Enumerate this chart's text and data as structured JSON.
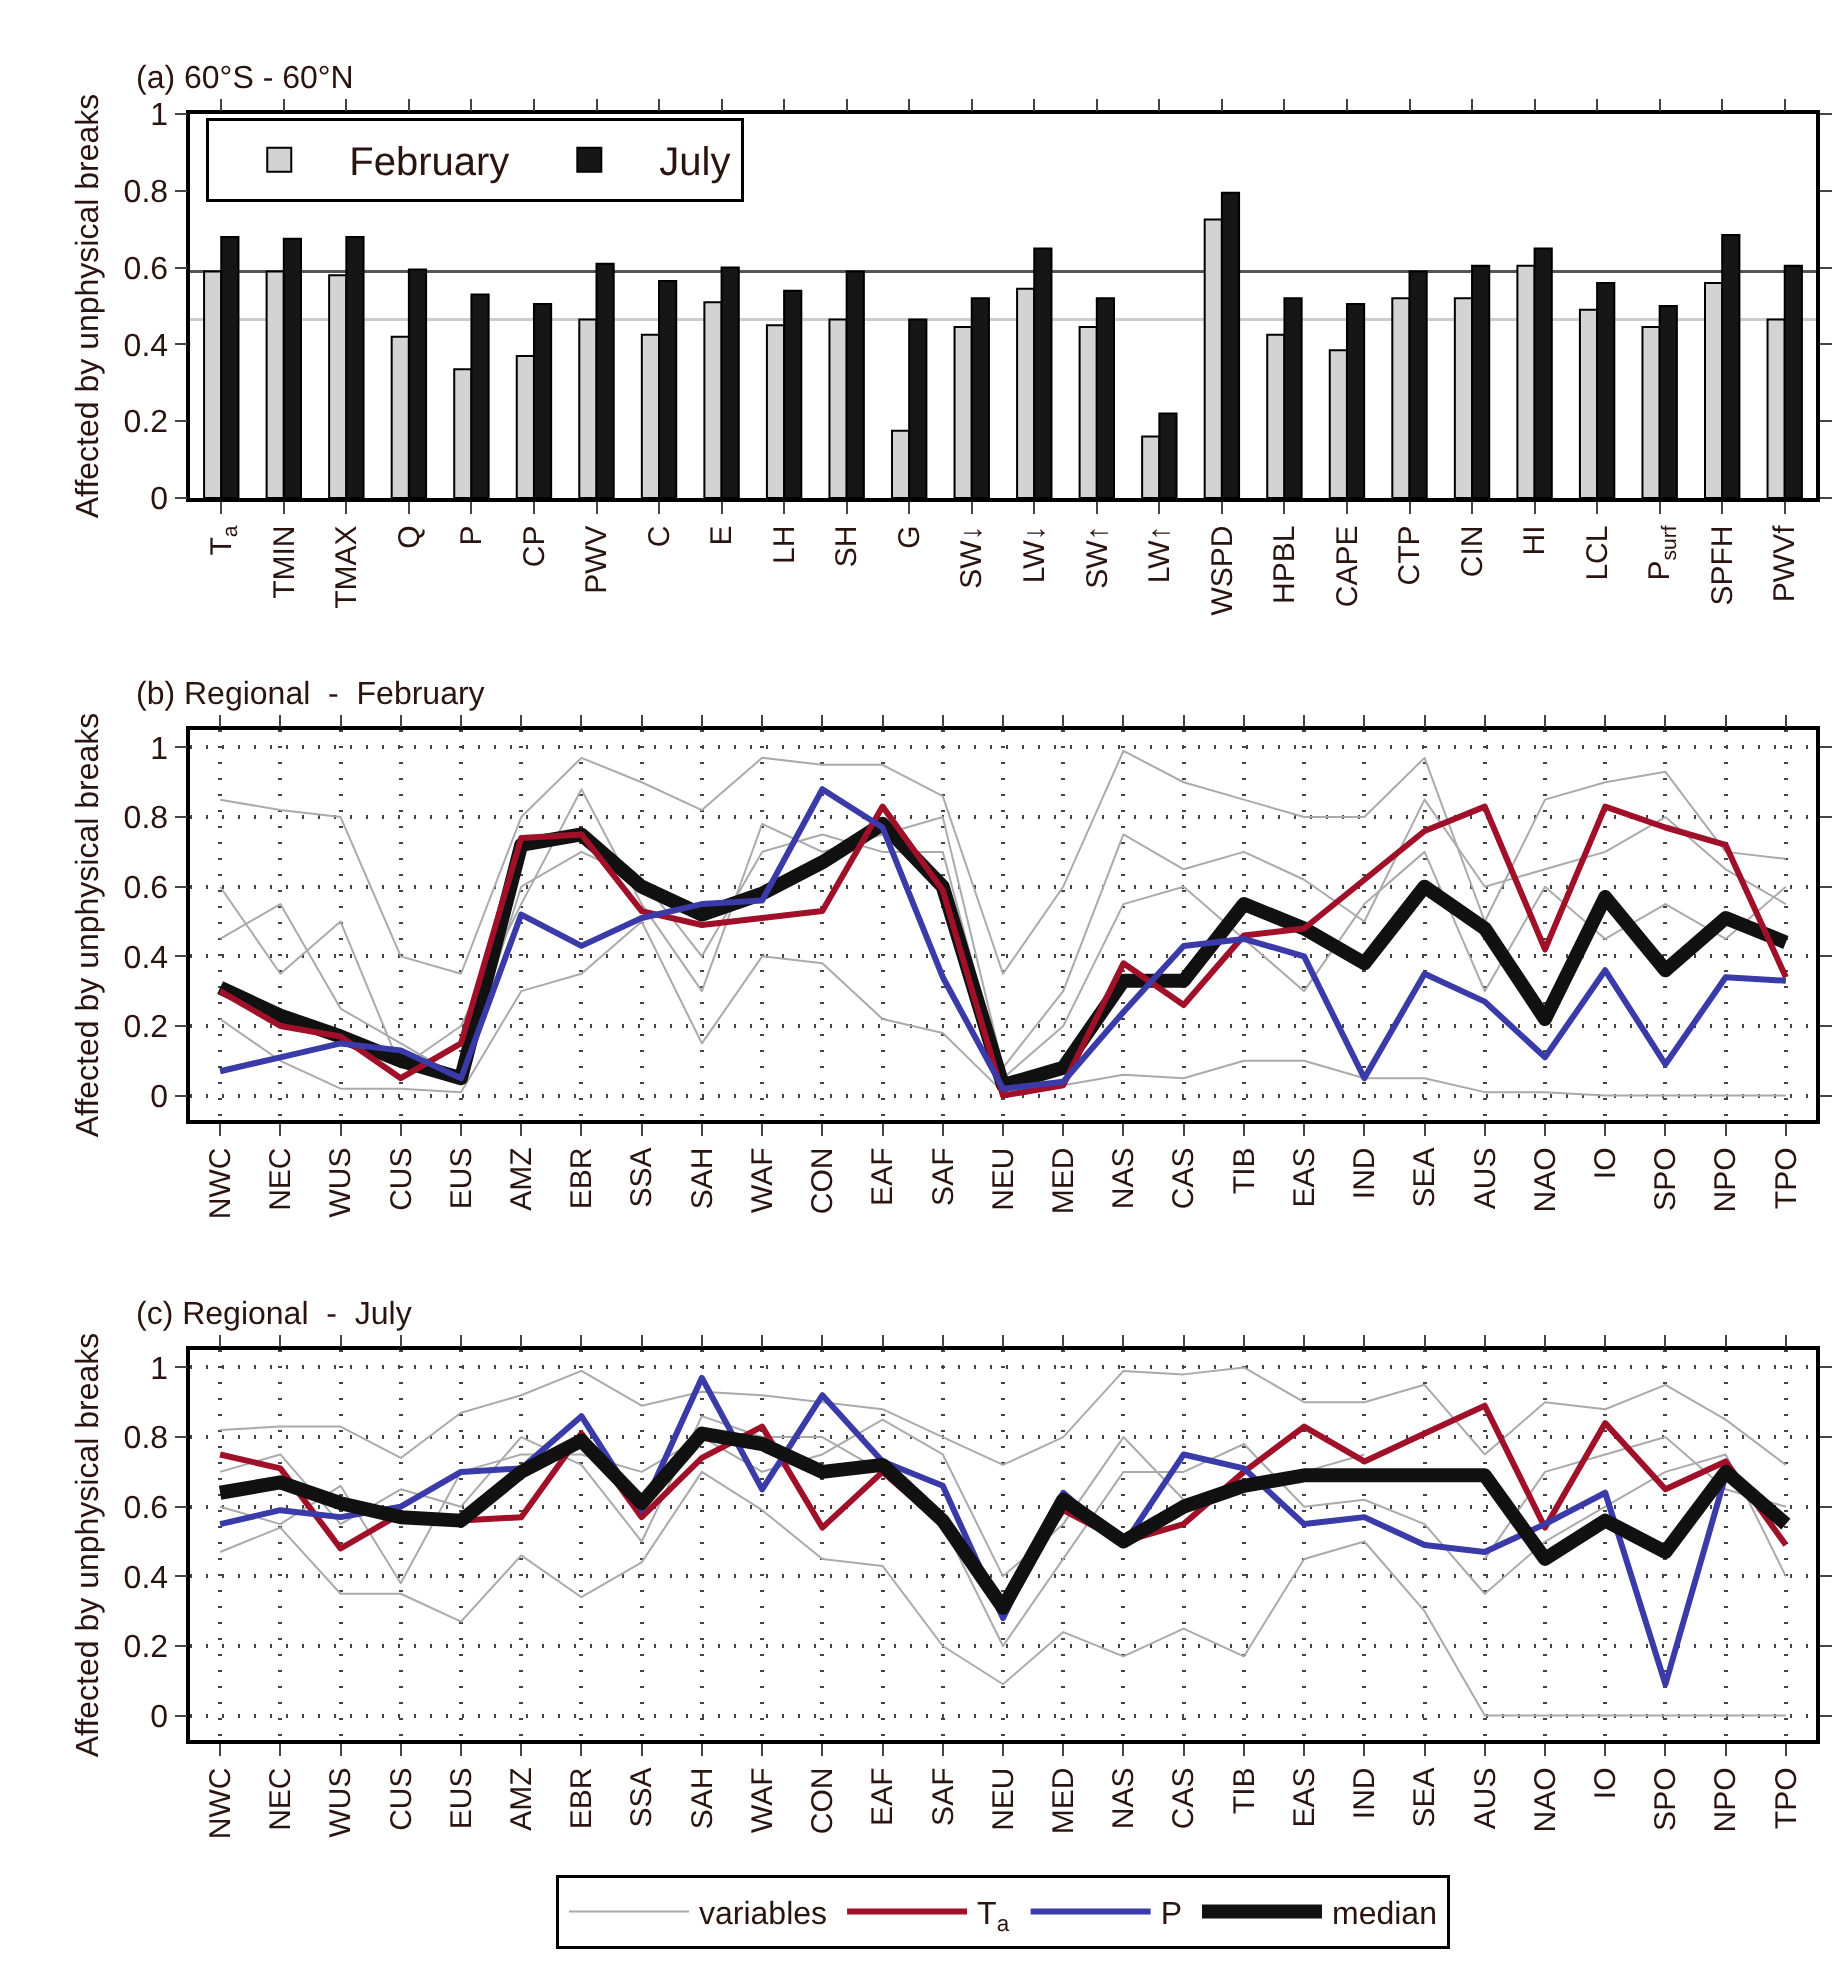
{
  "chart_data": [
    {
      "type": "bar",
      "title": "(a) 60°S - 60°N",
      "ylabel": "Affected by unphysical breaks",
      "categories": [
        "T$_{a}$",
        "TMIN",
        "TMAX",
        "Q",
        "P",
        "CP",
        "PWV",
        "C",
        "E",
        "LH",
        "SH",
        "G",
        "SW↓",
        "LW↓",
        "SW↑",
        "LW↑",
        "WSPD",
        "HPBL",
        "CAPE",
        "CTP",
        "CIN",
        "HI",
        "LCL",
        "P$_{surf}$",
        "SPFH",
        "PWVf"
      ],
      "series": [
        {
          "name": "February",
          "color": "#d3d3d3",
          "values": [
            0.59,
            0.59,
            0.58,
            0.42,
            0.335,
            0.37,
            0.465,
            0.425,
            0.51,
            0.45,
            0.465,
            0.175,
            0.445,
            0.545,
            0.445,
            0.16,
            0.725,
            0.425,
            0.385,
            0.52,
            0.52,
            0.605,
            0.49,
            0.445,
            0.56,
            0.465
          ]
        },
        {
          "name": "July",
          "color": "#161616",
          "values": [
            0.68,
            0.675,
            0.68,
            0.595,
            0.53,
            0.505,
            0.61,
            0.565,
            0.6,
            0.54,
            0.59,
            0.465,
            0.52,
            0.65,
            0.52,
            0.22,
            0.795,
            0.52,
            0.505,
            0.59,
            0.605,
            0.65,
            0.56,
            0.5,
            0.685,
            0.605
          ]
        }
      ],
      "ylim": [
        0,
        1
      ],
      "yticks": [
        0,
        0.2,
        0.4,
        0.6,
        0.8,
        1
      ],
      "ref_lines": [
        {
          "axis": "y",
          "value": 0.59,
          "color": "#555555"
        },
        {
          "axis": "y",
          "value": 0.465,
          "color": "#cccccc"
        }
      ],
      "grid": false,
      "legend": "top left"
    },
    {
      "type": "line",
      "title": "(b) Regional  -  February",
      "ylabel": "Affected by unphysical breaks",
      "categories": [
        "NWC",
        "NEC",
        "WUS",
        "CUS",
        "EUS",
        "AMZ",
        "EBR",
        "SSA",
        "SAH",
        "WAF",
        "CON",
        "EAF",
        "SAF",
        "NEU",
        "MED",
        "NAS",
        "CAS",
        "TIB",
        "EAS",
        "IND",
        "SEA",
        "AUS",
        "NAO",
        "IO",
        "SPO",
        "NPO",
        "TPO"
      ],
      "series": [
        {
          "color": "#aaaaaa",
          "values": [
            0.85,
            0.82,
            0.8,
            0.4,
            0.35,
            0.8,
            0.97,
            0.9,
            0.82,
            0.97,
            0.95,
            0.95,
            0.86,
            0.35,
            0.6,
            0.99,
            0.9,
            0.85,
            0.8,
            0.8,
            0.97,
            0.5,
            0.85,
            0.9,
            0.93,
            0.7,
            0.68
          ]
        },
        {
          "color": "#aaaaaa",
          "values": [
            0.22,
            0.1,
            0.02,
            0.02,
            0.01,
            0.3,
            0.35,
            0.5,
            0.15,
            0.4,
            0.38,
            0.22,
            0.18,
            0.01,
            0.03,
            0.06,
            0.05,
            0.1,
            0.1,
            0.05,
            0.05,
            0.01,
            0.01,
            0,
            0,
            0,
            0
          ]
        },
        {
          "color": "#aaaaaa",
          "values": [
            0.45,
            0.55,
            0.25,
            0.15,
            0.05,
            0.6,
            0.7,
            0.62,
            0.4,
            0.7,
            0.75,
            0.7,
            0.7,
            0.05,
            0.2,
            0.55,
            0.6,
            0.45,
            0.3,
            0.55,
            0.7,
            0.3,
            0.6,
            0.45,
            0.55,
            0.45,
            0.6
          ]
        },
        {
          "color": "#aaaaaa",
          "values": [
            0.6,
            0.35,
            0.5,
            0.08,
            0.2,
            0.55,
            0.88,
            0.55,
            0.3,
            0.78,
            0.7,
            0.75,
            0.8,
            0.08,
            0.3,
            0.75,
            0.65,
            0.7,
            0.62,
            0.5,
            0.85,
            0.6,
            0.65,
            0.7,
            0.8,
            0.65,
            0.55
          ]
        },
        {
          "color": "#111111",
          "values": [
            0.31,
            0.23,
            0.17,
            0.1,
            0.05,
            0.72,
            0.75,
            0.6,
            0.52,
            0.58,
            0.67,
            0.78,
            0.6,
            0.03,
            0.08,
            0.33,
            0.33,
            0.55,
            0.48,
            0.38,
            0.6,
            0.48,
            0.22,
            0.57,
            0.36,
            0.51,
            0.44
          ]
        },
        {
          "color": "#a01028",
          "values": [
            0.3,
            0.2,
            0.17,
            0.05,
            0.15,
            0.74,
            0.75,
            0.53,
            0.49,
            0.51,
            0.53,
            0.83,
            0.59,
            0,
            0.03,
            0.38,
            0.26,
            0.46,
            0.48,
            0.62,
            0.76,
            0.83,
            0.42,
            0.83,
            0.77,
            0.72,
            0.34
          ]
        },
        {
          "color": "#3a3aa8",
          "values": [
            0.07,
            0.11,
            0.15,
            0.13,
            0.05,
            0.52,
            0.43,
            0.51,
            0.55,
            0.56,
            0.88,
            0.77,
            0.34,
            0.02,
            0.04,
            0.24,
            0.43,
            0.45,
            0.4,
            0.05,
            0.35,
            0.27,
            0.11,
            0.36,
            0.09,
            0.34,
            0.33
          ]
        }
      ],
      "ylim": [
        -0.07,
        1.05
      ],
      "yticks": [
        0,
        0.2,
        0.4,
        0.6,
        0.8,
        1
      ],
      "grid": true,
      "line_style": "solid",
      "marker": "none"
    },
    {
      "type": "line",
      "title": "(c) Regional  -  July",
      "ylabel": "Affected by unphysical breaks",
      "categories": [
        "NWC",
        "NEC",
        "WUS",
        "CUS",
        "EUS",
        "AMZ",
        "EBR",
        "SSA",
        "SAH",
        "WAF",
        "CON",
        "EAF",
        "SAF",
        "NEU",
        "MED",
        "NAS",
        "CAS",
        "TIB",
        "EAS",
        "IND",
        "SEA",
        "AUS",
        "NAO",
        "IO",
        "SPO",
        "NPO",
        "TPO"
      ],
      "series": [
        {
          "name": "variables",
          "color": "#aaaaaa",
          "values": [
            0.82,
            0.83,
            0.83,
            0.74,
            0.87,
            0.92,
            0.99,
            0.89,
            0.93,
            0.92,
            0.9,
            0.88,
            0.8,
            0.72,
            0.8,
            0.99,
            0.98,
            1.0,
            0.9,
            0.9,
            0.95,
            0.75,
            0.9,
            0.88,
            0.95,
            0.85,
            0.72
          ]
        },
        {
          "color": "#aaaaaa",
          "values": [
            0.47,
            0.54,
            0.35,
            0.35,
            0.27,
            0.46,
            0.34,
            0.44,
            0.7,
            0.59,
            0.45,
            0.43,
            0.2,
            0.09,
            0.24,
            0.17,
            0.25,
            0.17,
            0.45,
            0.5,
            0.3,
            0,
            0,
            0,
            0,
            0,
            0
          ]
        },
        {
          "color": "#aaaaaa",
          "values": [
            0.6,
            0.55,
            0.66,
            0.38,
            0.7,
            0.75,
            0.75,
            0.7,
            0.8,
            0.7,
            0.75,
            0.85,
            0.75,
            0.4,
            0.55,
            0.8,
            0.62,
            0.66,
            0.7,
            0.75,
            null,
            0.45,
            0.7,
            0.75,
            0.8,
            0.65,
            0.6
          ]
        },
        {
          "color": "#aaaaaa",
          "values": [
            0.7,
            0.75,
            0.55,
            0.65,
            0.6,
            0.8,
            0.72,
            0.5,
            0.86,
            0.8,
            0.8,
            0.7,
            0.55,
            0.2,
            0.45,
            0.7,
            0.7,
            0.78,
            0.6,
            0.62,
            0.55,
            0.35,
            0.5,
            0.6,
            0.7,
            0.75,
            0.4
          ]
        },
        {
          "name": "T$_{a}$",
          "color": "#a01028",
          "values": [
            0.75,
            0.71,
            0.48,
            0.58,
            0.56,
            0.57,
            0.81,
            0.57,
            0.74,
            0.83,
            0.54,
            0.7,
            0.55,
            0.33,
            0.59,
            0.5,
            0.55,
            0.7,
            0.83,
            0.73,
            0.81,
            0.89,
            0.54,
            0.84,
            0.65,
            0.73,
            0.49
          ]
        },
        {
          "name": "P",
          "color": "#3a3aa8",
          "values": [
            0.55,
            0.59,
            0.57,
            0.6,
            0.7,
            0.71,
            0.86,
            0.59,
            0.97,
            0.65,
            0.92,
            0.73,
            0.66,
            0.28,
            0.64,
            0.49,
            0.75,
            0.71,
            0.55,
            0.57,
            0.49,
            0.47,
            0.55,
            0.64,
            0.09,
            0.69,
            0.56
          ]
        },
        {
          "name": "median",
          "color": "#111111",
          "values": [
            0.64,
            0.67,
            0.61,
            0.57,
            0.56,
            0.7,
            0.79,
            0.61,
            0.81,
            0.78,
            0.7,
            0.72,
            0.56,
            0.31,
            0.62,
            0.5,
            0.6,
            0.66,
            0.69,
            0.69,
            0.69,
            0.69,
            0.45,
            0.56,
            0.47,
            0.7,
            0.55
          ]
        }
      ],
      "ylim": [
        -0.07,
        1.05
      ],
      "yticks": [
        0,
        0.2,
        0.4,
        0.6,
        0.8,
        1
      ],
      "grid": true,
      "line_style": "solid",
      "marker": "none",
      "legend": "bottom"
    }
  ]
}
